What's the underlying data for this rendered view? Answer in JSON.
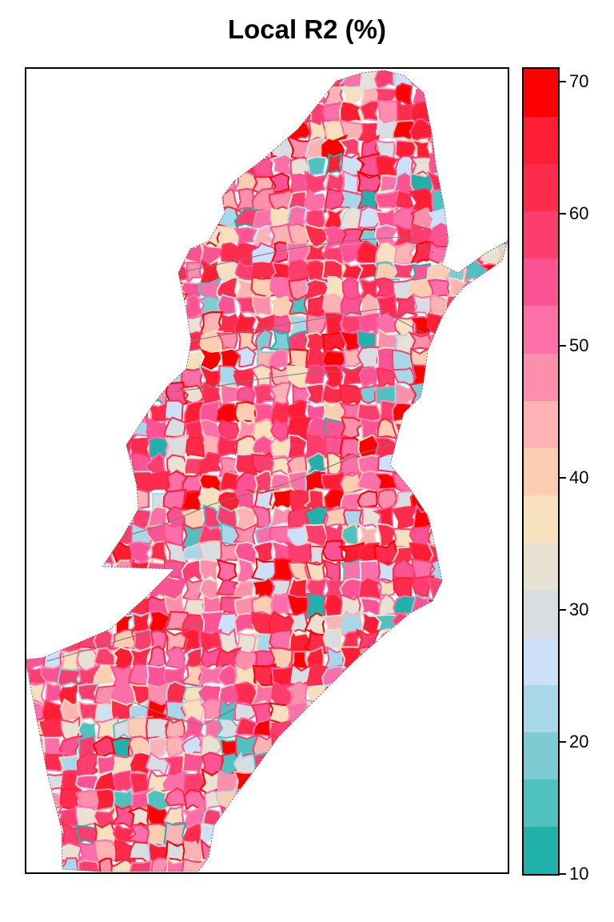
{
  "title": "Local R2 (%)",
  "legend": {
    "range": [
      10,
      71
    ],
    "break_step": 4,
    "colors": [
      "#20b2aa",
      "#4fc1be",
      "#7dcbd3",
      "#a9d7ea",
      "#cce0f7",
      "#d7dde1",
      "#e8e1d4",
      "#f6e0bd",
      "#fccdb0",
      "#fdb2b3",
      "#fc8fac",
      "#fc6fa9",
      "#fc5394",
      "#fc3e6e",
      "#fd2c4c",
      "#fe1e33",
      "#ff0000"
    ],
    "ticks": [
      {
        "label": "10",
        "value": 10
      },
      {
        "label": "20",
        "value": 20
      },
      {
        "label": "30",
        "value": 30
      },
      {
        "label": "40",
        "value": 40
      },
      {
        "label": "50",
        "value": 50
      },
      {
        "label": "60",
        "value": 60
      },
      {
        "label": "70",
        "value": 70
      }
    ]
  }
}
